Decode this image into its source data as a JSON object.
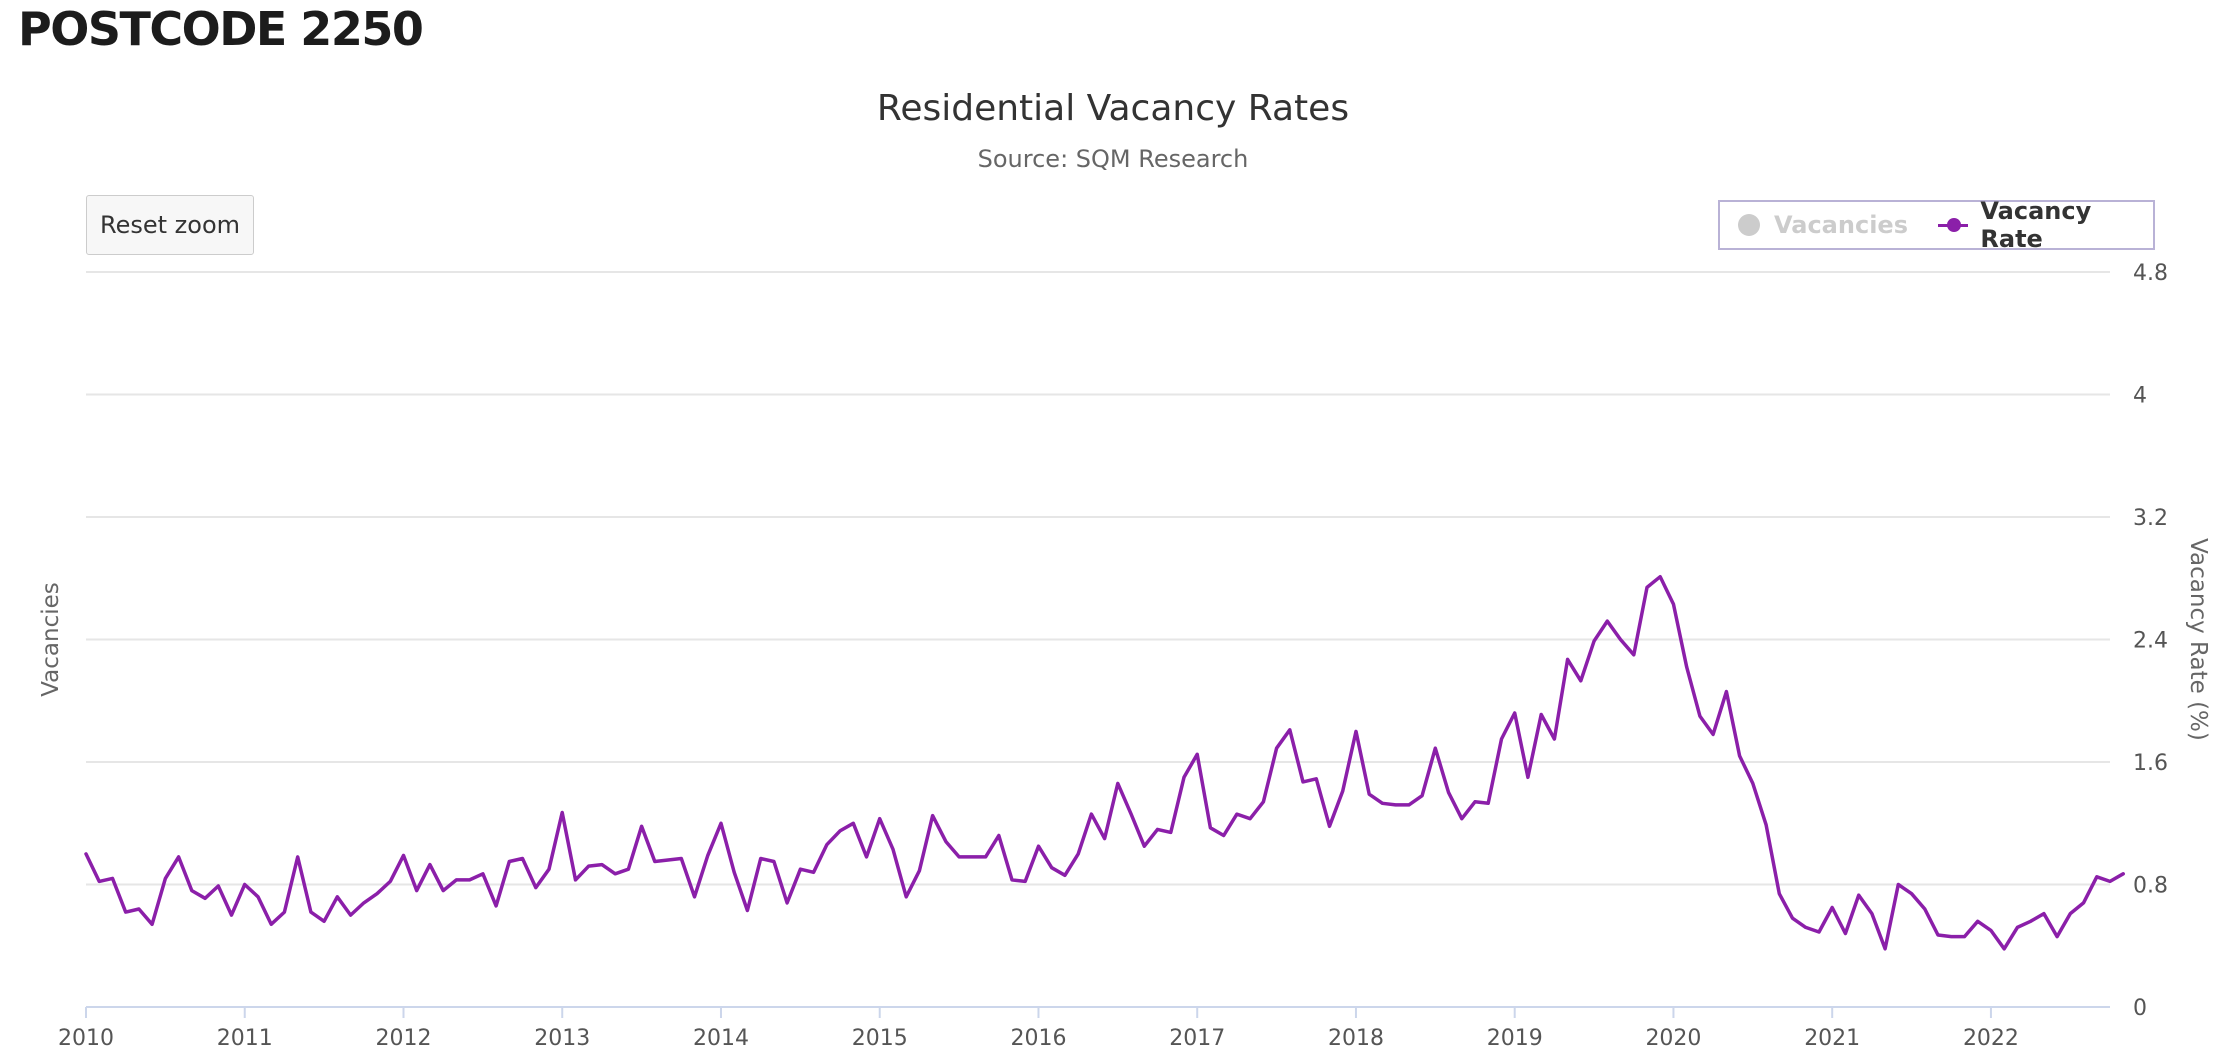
{
  "page": {
    "title": "POSTCODE 2250"
  },
  "toolbar": {
    "reset_zoom_label": "Reset zoom"
  },
  "legend": {
    "items": [
      {
        "label": "Vacancies",
        "state": "hidden",
        "color": "#cccccc",
        "icon": "circle-marker-icon"
      },
      {
        "label": "Vacancy Rate",
        "state": "visible",
        "color": "#8b1fa9",
        "icon": "line-marker-icon"
      }
    ]
  },
  "chart_data": {
    "type": "line",
    "title": "Residential Vacancy Rates",
    "subtitle": "Source: SQM Research",
    "xlabel": "",
    "ylabel_left": "Vacancies",
    "ylabel_right": "Vacancy Rate (%)",
    "x_ticks": [
      "2010",
      "2011",
      "2012",
      "2013",
      "2014",
      "2015",
      "2016",
      "2017",
      "2018",
      "2019",
      "2020",
      "2021",
      "2022"
    ],
    "y_ticks": [
      "0",
      "0.8",
      "1.6",
      "2.4",
      "3.2",
      "4",
      "4.8"
    ],
    "ylim": [
      0,
      4.8
    ],
    "xlim": [
      "2010-01",
      "2022-10"
    ],
    "grid": true,
    "legend_position": "top-right",
    "series": [
      {
        "name": "Vacancy Rate",
        "color": "#8b1fa9",
        "start": "2010-01",
        "frequency": "monthly",
        "values": [
          1.0,
          0.82,
          0.84,
          0.62,
          0.64,
          0.54,
          0.84,
          0.98,
          0.76,
          0.71,
          0.79,
          0.6,
          0.8,
          0.72,
          0.54,
          0.62,
          0.98,
          0.62,
          0.56,
          0.72,
          0.6,
          0.68,
          0.74,
          0.82,
          0.99,
          0.76,
          0.93,
          0.76,
          0.83,
          0.83,
          0.87,
          0.66,
          0.95,
          0.97,
          0.78,
          0.9,
          1.27,
          0.83,
          0.92,
          0.93,
          0.87,
          0.9,
          1.18,
          0.95,
          0.96,
          0.97,
          0.72,
          0.99,
          1.2,
          0.88,
          0.63,
          0.97,
          0.95,
          0.68,
          0.9,
          0.88,
          1.06,
          1.15,
          1.2,
          0.98,
          1.23,
          1.03,
          0.72,
          0.89,
          1.25,
          1.08,
          0.98,
          0.98,
          0.98,
          1.12,
          0.83,
          0.82,
          1.05,
          0.91,
          0.86,
          1.0,
          1.26,
          1.1,
          1.46,
          1.26,
          1.05,
          1.16,
          1.14,
          1.5,
          1.65,
          1.17,
          1.12,
          1.26,
          1.23,
          1.34,
          1.69,
          1.81,
          1.47,
          1.49,
          1.18,
          1.41,
          1.8,
          1.39,
          1.33,
          1.32,
          1.32,
          1.38,
          1.69,
          1.4,
          1.23,
          1.34,
          1.33,
          1.75,
          1.92,
          1.5,
          1.91,
          1.75,
          2.27,
          2.13,
          2.39,
          2.52,
          2.4,
          2.3,
          2.74,
          2.81,
          2.63,
          2.22,
          1.9,
          1.78,
          2.06,
          1.64,
          1.46,
          1.19,
          0.74,
          0.58,
          0.52,
          0.49,
          0.65,
          0.48,
          0.73,
          0.61,
          0.38,
          0.8,
          0.74,
          0.64,
          0.47,
          0.46,
          0.46,
          0.56,
          0.5,
          0.38,
          0.52,
          0.56,
          0.61,
          0.46,
          0.61,
          0.68,
          0.85,
          0.82,
          0.87
        ]
      }
    ]
  }
}
